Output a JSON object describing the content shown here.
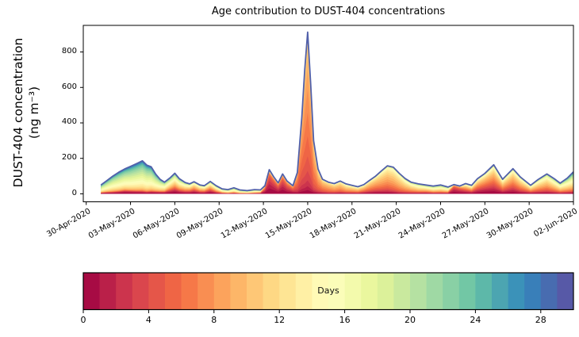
{
  "figure": {
    "title": "Age contribution to DUST-404 concentrations",
    "ylabel_line1": "DUST-404 concentration",
    "ylabel_line2": "(ng m⁻³)",
    "colorbar_label": "Days"
  },
  "chart_data": {
    "type": "area",
    "subtype": "stacked-area-age-spectrum",
    "title": "Age contribution to DUST-404 concentrations",
    "xlabel": "",
    "ylabel": "DUST-404 concentration (ng m⁻³)",
    "grid": false,
    "legend": "colorbar",
    "xlim_days_from_first_tick": [
      -0.2,
      33.0
    ],
    "ylim": [
      -45,
      950
    ],
    "y_ticks": [
      0,
      200,
      400,
      600,
      800
    ],
    "x_ticks": [
      {
        "day": 0,
        "label": "30-Apr-2020"
      },
      {
        "day": 3,
        "label": "03-May-2020"
      },
      {
        "day": 6,
        "label": "06-May-2020"
      },
      {
        "day": 9,
        "label": "09-May-2020"
      },
      {
        "day": 12,
        "label": "12-May-2020"
      },
      {
        "day": 15,
        "label": "15-May-2020"
      },
      {
        "day": 18,
        "label": "18-May-2020"
      },
      {
        "day": 21,
        "label": "21-May-2020"
      },
      {
        "day": 24,
        "label": "24-May-2020"
      },
      {
        "day": 27,
        "label": "27-May-2020"
      },
      {
        "day": 30,
        "label": "30-May-2020"
      },
      {
        "day": 33,
        "label": "02-Jun-2020"
      }
    ],
    "stack": {
      "n_age_bins": 30,
      "age_min_days": 0,
      "age_max_days": 30,
      "point_fields": [
        "day",
        "total_ng_m3",
        "age_mode_days",
        "age_sigma_days",
        "fresh_fraction",
        "uniform_fraction"
      ],
      "points": [
        [
          1.0,
          50,
          17,
          5.5,
          0.1,
          0.06
        ],
        [
          1.4,
          75,
          17,
          5.5,
          0.1,
          0.06
        ],
        [
          1.8,
          100,
          17,
          5.5,
          0.09,
          0.06
        ],
        [
          2.2,
          122,
          17.5,
          5.5,
          0.1,
          0.06
        ],
        [
          2.6,
          140,
          17.5,
          5.5,
          0.12,
          0.06
        ],
        [
          3.0,
          155,
          18,
          5.5,
          0.1,
          0.06
        ],
        [
          3.4,
          170,
          18,
          5.5,
          0.08,
          0.06
        ],
        [
          3.8,
          186,
          18,
          5.5,
          0.07,
          0.06
        ],
        [
          4.1,
          162,
          18,
          5.5,
          0.06,
          0.06
        ],
        [
          4.4,
          152,
          17.5,
          5.5,
          0.08,
          0.06
        ],
        [
          4.7,
          112,
          17,
          5.5,
          0.1,
          0.06
        ],
        [
          5.0,
          82,
          16,
          5.5,
          0.12,
          0.07
        ],
        [
          5.3,
          66,
          15,
          5.5,
          0.15,
          0.08
        ],
        [
          5.7,
          92,
          13,
          6.5,
          0.18,
          0.08
        ],
        [
          6.0,
          116,
          12.5,
          6.5,
          0.2,
          0.08
        ],
        [
          6.3,
          86,
          12.5,
          6.5,
          0.16,
          0.08
        ],
        [
          6.7,
          64,
          12,
          6,
          0.16,
          0.08
        ],
        [
          7.0,
          56,
          11,
          6,
          0.18,
          0.08
        ],
        [
          7.3,
          68,
          10,
          5.5,
          0.22,
          0.08
        ],
        [
          7.7,
          50,
          11,
          5.5,
          0.16,
          0.08
        ],
        [
          8.0,
          46,
          11,
          6,
          0.16,
          0.08
        ],
        [
          8.4,
          70,
          10,
          7,
          0.2,
          0.08
        ],
        [
          8.8,
          46,
          12,
          6.5,
          0.13,
          0.08
        ],
        [
          9.2,
          28,
          14,
          6,
          0.1,
          0.08
        ],
        [
          9.6,
          24,
          15,
          6,
          0.08,
          0.08
        ],
        [
          10.0,
          34,
          15,
          6,
          0.1,
          0.08
        ],
        [
          10.4,
          22,
          16,
          6,
          0.08,
          0.08
        ],
        [
          10.9,
          18,
          16,
          6,
          0.08,
          0.08
        ],
        [
          11.4,
          24,
          15,
          6,
          0.1,
          0.08
        ],
        [
          11.8,
          22,
          13,
          6,
          0.14,
          0.08
        ],
        [
          12.1,
          46,
          5,
          4,
          0.38,
          0.14
        ],
        [
          12.4,
          136,
          2.5,
          3,
          0.45,
          0.16
        ],
        [
          12.7,
          96,
          3,
          3,
          0.42,
          0.14
        ],
        [
          13.0,
          62,
          4,
          3.5,
          0.35,
          0.12
        ],
        [
          13.3,
          112,
          3.5,
          3,
          0.42,
          0.12
        ],
        [
          13.6,
          72,
          4,
          3.5,
          0.3,
          0.1
        ],
        [
          14.0,
          46,
          5,
          3.5,
          0.25,
          0.1
        ],
        [
          14.3,
          120,
          6,
          2.5,
          0.07,
          0.08
        ],
        [
          14.6,
          430,
          6.5,
          2.5,
          0.05,
          0.07
        ],
        [
          14.8,
          700,
          7,
          2.5,
          0.04,
          0.06
        ],
        [
          15.0,
          912,
          7,
          2.5,
          0.04,
          0.06
        ],
        [
          15.2,
          620,
          7,
          2.5,
          0.04,
          0.06
        ],
        [
          15.4,
          300,
          7.5,
          2.5,
          0.05,
          0.07
        ],
        [
          15.7,
          140,
          8,
          3,
          0.06,
          0.08
        ],
        [
          16.0,
          82,
          8,
          3,
          0.08,
          0.08
        ],
        [
          16.4,
          66,
          8.5,
          3,
          0.08,
          0.08
        ],
        [
          16.8,
          58,
          9,
          3.5,
          0.08,
          0.08
        ],
        [
          17.2,
          72,
          9,
          3.5,
          0.08,
          0.08
        ],
        [
          17.6,
          56,
          10,
          4,
          0.08,
          0.08
        ],
        [
          18.0,
          48,
          10,
          4,
          0.1,
          0.08
        ],
        [
          18.4,
          40,
          10,
          4.5,
          0.1,
          0.08
        ],
        [
          18.8,
          52,
          9,
          4.5,
          0.12,
          0.08
        ],
        [
          19.2,
          76,
          8.5,
          4,
          0.12,
          0.07
        ],
        [
          19.6,
          100,
          8.5,
          4,
          0.12,
          0.07
        ],
        [
          20.0,
          130,
          9,
          4,
          0.1,
          0.06
        ],
        [
          20.4,
          158,
          9,
          4,
          0.08,
          0.06
        ],
        [
          20.8,
          150,
          9.5,
          4,
          0.06,
          0.06
        ],
        [
          21.2,
          116,
          10,
          4,
          0.05,
          0.06
        ],
        [
          21.6,
          86,
          10.5,
          4.5,
          0.05,
          0.07
        ],
        [
          22.0,
          66,
          11,
          5,
          0.06,
          0.08
        ],
        [
          22.5,
          56,
          12,
          5.5,
          0.08,
          0.08
        ],
        [
          23.0,
          50,
          12,
          6,
          0.1,
          0.08
        ],
        [
          23.5,
          44,
          13,
          6,
          0.08,
          0.08
        ],
        [
          24.0,
          50,
          13,
          6,
          0.08,
          0.08
        ],
        [
          24.5,
          38,
          13,
          6,
          0.1,
          0.08
        ],
        [
          24.9,
          52,
          3,
          3,
          0.45,
          0.14
        ],
        [
          25.3,
          44,
          4,
          4,
          0.35,
          0.12
        ],
        [
          25.7,
          58,
          8,
          6,
          0.2,
          0.1
        ],
        [
          26.1,
          48,
          9,
          6,
          0.15,
          0.1
        ],
        [
          26.5,
          85,
          8,
          5,
          0.2,
          0.08
        ],
        [
          27.0,
          115,
          8,
          5,
          0.22,
          0.08
        ],
        [
          27.6,
          164,
          8,
          5,
          0.18,
          0.08
        ],
        [
          28.2,
          82,
          9,
          5,
          0.15,
          0.08
        ],
        [
          28.9,
          142,
          8.5,
          5,
          0.15,
          0.08
        ],
        [
          29.4,
          95,
          9,
          5,
          0.1,
          0.08
        ],
        [
          30.1,
          48,
          10,
          5.5,
          0.1,
          0.09
        ],
        [
          30.6,
          80,
          10,
          5.5,
          0.08,
          0.09
        ],
        [
          31.2,
          112,
          10,
          5.5,
          0.06,
          0.09
        ],
        [
          31.7,
          85,
          11,
          6,
          0.06,
          0.09
        ],
        [
          32.1,
          60,
          12,
          6,
          0.06,
          0.09
        ],
        [
          32.6,
          90,
          13,
          6.5,
          0.05,
          0.09
        ],
        [
          33.0,
          124,
          14,
          7,
          0.05,
          0.09
        ]
      ]
    },
    "colormap": {
      "name": "Spectral",
      "stops": [
        "#9e0142",
        "#d53e4f",
        "#f46d43",
        "#fdae61",
        "#fee08b",
        "#ffffbf",
        "#e6f598",
        "#abdda4",
        "#66c2a5",
        "#3288bd",
        "#5e4fa2"
      ]
    },
    "colorbar": {
      "label": "Days",
      "vmin": 0,
      "vmax": 30,
      "n_segments": 30,
      "ticks": [
        0,
        4,
        8,
        12,
        16,
        20,
        24,
        28
      ]
    }
  }
}
